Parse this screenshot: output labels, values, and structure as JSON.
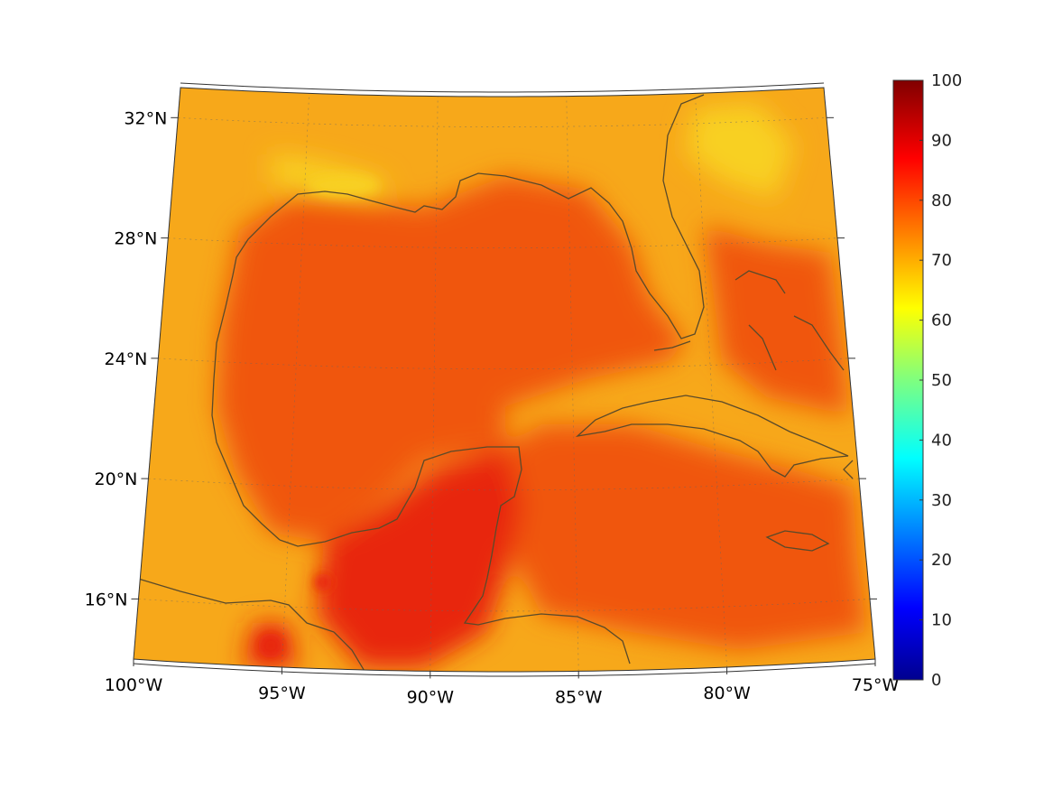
{
  "map": {
    "extent": {
      "lon_min": -100,
      "lon_max": -75,
      "lat_min": 14,
      "lat_max": 33
    },
    "lon_ticks": [
      {
        "value": -100,
        "label": "100°W"
      },
      {
        "value": -95,
        "label": "95°W"
      },
      {
        "value": -90,
        "label": "90°W"
      },
      {
        "value": -85,
        "label": "85°W"
      },
      {
        "value": -80,
        "label": "80°W"
      },
      {
        "value": -75,
        "label": "75°W"
      }
    ],
    "lat_ticks": [
      {
        "value": 16,
        "label": "16°N"
      },
      {
        "value": 20,
        "label": "20°N"
      },
      {
        "value": 24,
        "label": "24°N"
      },
      {
        "value": 28,
        "label": "28°N"
      },
      {
        "value": 32,
        "label": "32°N"
      }
    ],
    "grid": true,
    "coastline_color": "#5a4a2a",
    "field_colors": {
      "ocean": "#f0560f",
      "land": "#f7a81a",
      "hot": "#e8260a",
      "cool": "#f8d020"
    }
  },
  "colorbar": {
    "min": 0,
    "max": 100,
    "ticks": [
      "0",
      "10",
      "20",
      "30",
      "40",
      "50",
      "60",
      "70",
      "80",
      "90",
      "100"
    ],
    "colormap": "jet",
    "placement": "right"
  }
}
